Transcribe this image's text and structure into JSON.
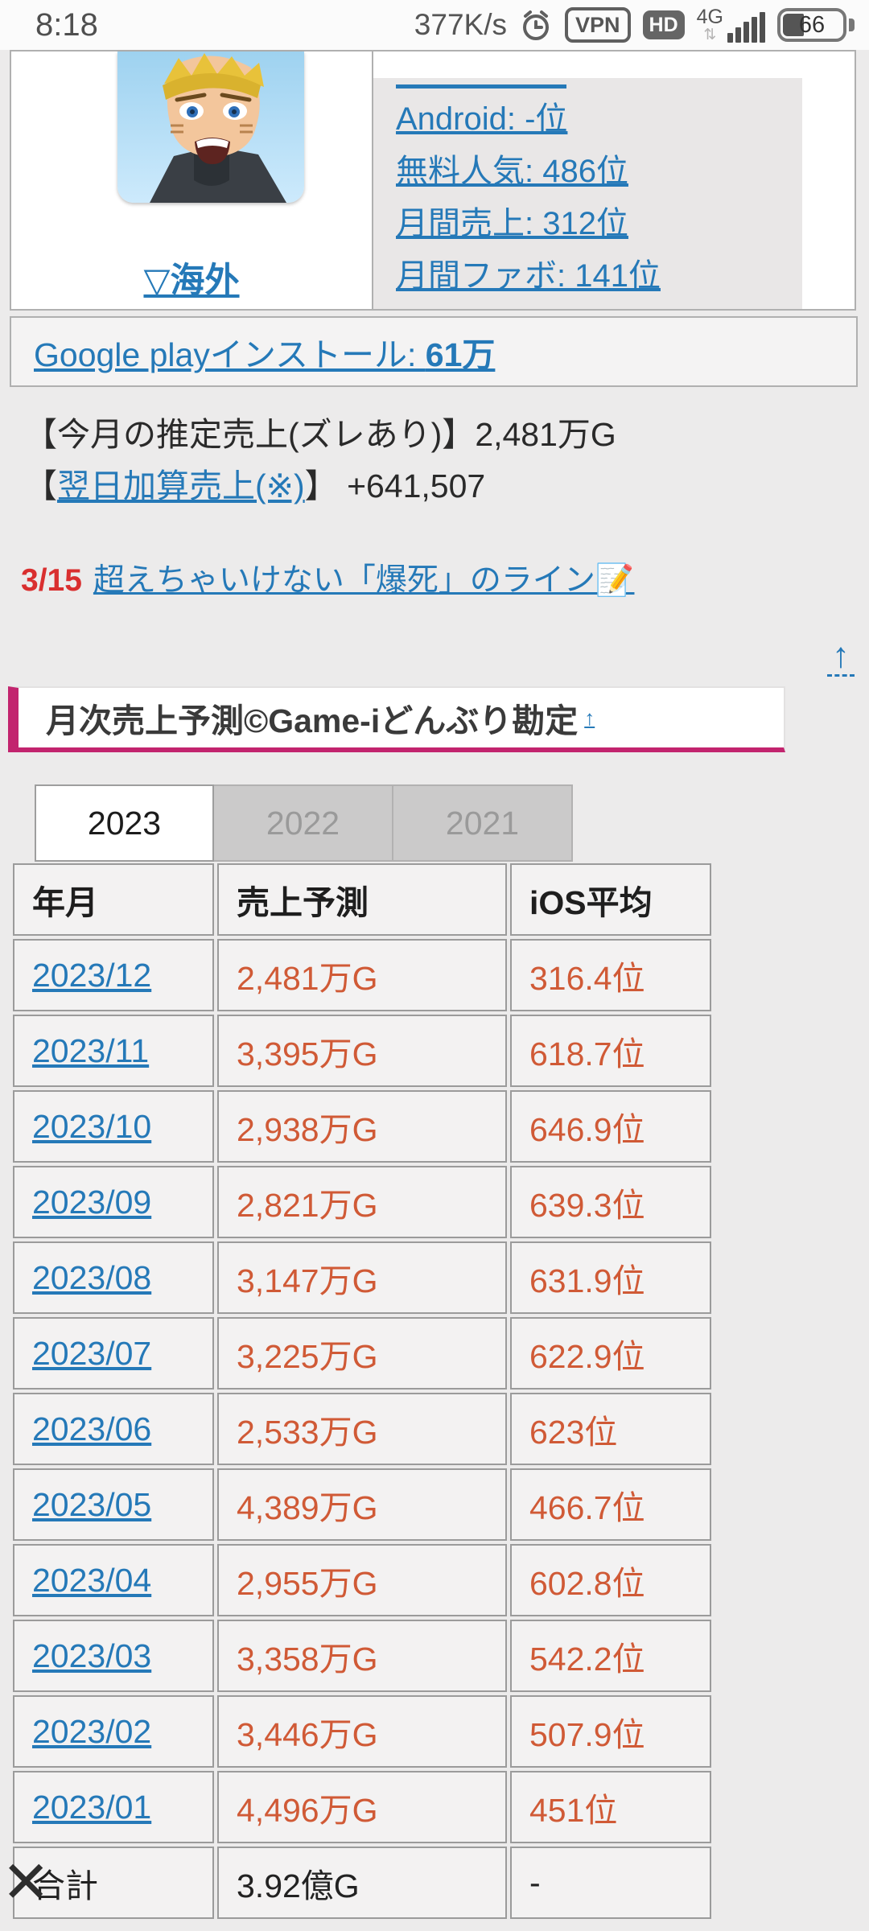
{
  "status_bar": {
    "time": "8:18",
    "net_speed": "377K/s",
    "vpn_label": "VPN",
    "hd_label": "HD",
    "network_type": "4G",
    "updown_arrows": "⇅",
    "battery_level": "66"
  },
  "profile": {
    "region_link": "▽海外",
    "links": [
      {
        "label": "Android: -位"
      },
      {
        "label": "無料人気: 486位"
      },
      {
        "label": "月間売上: 312位"
      },
      {
        "label": "月間ファボ: 141位"
      }
    ],
    "google_play_prefix": "Google playインストール: ",
    "google_play_value": "61万"
  },
  "summary": {
    "line1_label": "【今月の推定売上(ズレあり)】",
    "line1_value": "2,481万G",
    "line2_open": "【",
    "line2_link": "翌日加算売上(※)",
    "line2_close": "】",
    "line2_value": " +641,507"
  },
  "notice": {
    "date": "3/15",
    "link_text": "超えちゃいけない「爆死」のライン📝"
  },
  "section": {
    "title": "月次売上予測©Game-iどんぶり勘定",
    "sup_arrow": "↑",
    "back_to_top_arrow": "↑"
  },
  "tabs": [
    {
      "label": "2023",
      "active": true
    },
    {
      "label": "2022",
      "active": false
    },
    {
      "label": "2021",
      "active": false
    }
  ],
  "sales_table": {
    "headers": [
      "年月",
      "売上予測",
      "iOS平均"
    ],
    "rows": [
      [
        "2023/12",
        "2,481万G",
        "316.4位"
      ],
      [
        "2023/11",
        "3,395万G",
        "618.7位"
      ],
      [
        "2023/10",
        "2,938万G",
        "646.9位"
      ],
      [
        "2023/09",
        "2,821万G",
        "639.3位"
      ],
      [
        "2023/08",
        "3,147万G",
        "631.9位"
      ],
      [
        "2023/07",
        "3,225万G",
        "622.9位"
      ],
      [
        "2023/06",
        "2,533万G",
        "623位"
      ],
      [
        "2023/05",
        "4,389万G",
        "466.7位"
      ],
      [
        "2023/04",
        "2,955万G",
        "602.8位"
      ],
      [
        "2023/03",
        "3,358万G",
        "542.2位"
      ],
      [
        "2023/02",
        "3,446万G",
        "507.9位"
      ],
      [
        "2023/01",
        "4,496万G",
        "451位"
      ]
    ],
    "footer": [
      "合計",
      "3.92億G",
      "-"
    ]
  },
  "floating_close": "✕",
  "colors": {
    "link_blue": "#2579b8",
    "value_orange": "#d05a36",
    "alert_red": "#d92f2f",
    "accent_magenta": "#c2246e"
  }
}
